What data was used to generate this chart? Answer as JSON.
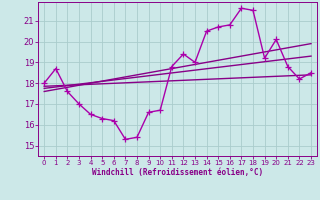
{
  "xlabel": "Windchill (Refroidissement éolien,°C)",
  "bg_color": "#cce8e8",
  "grid_color": "#aacccc",
  "line_color": "#880088",
  "line_color2": "#aa00aa",
  "x_ticks": [
    0,
    1,
    2,
    3,
    4,
    5,
    6,
    7,
    8,
    9,
    10,
    11,
    12,
    13,
    14,
    15,
    16,
    17,
    18,
    19,
    20,
    21,
    22,
    23
  ],
  "y_ticks": [
    15,
    16,
    17,
    18,
    19,
    20,
    21
  ],
  "xlim": [
    -0.5,
    23.5
  ],
  "ylim": [
    14.5,
    21.9
  ],
  "series1": [
    18.0,
    18.7,
    17.6,
    17.0,
    16.5,
    16.3,
    16.2,
    15.3,
    15.4,
    16.6,
    16.7,
    18.8,
    19.4,
    19.0,
    20.5,
    20.7,
    20.8,
    21.6,
    21.5,
    19.2,
    20.1,
    18.8,
    18.2,
    18.5
  ],
  "series2_x": [
    0,
    23
  ],
  "series2_y": [
    17.75,
    19.3
  ],
  "series3_x": [
    0,
    23
  ],
  "series3_y": [
    17.6,
    19.9
  ],
  "series4_x": [
    0,
    23
  ],
  "series4_y": [
    17.85,
    18.4
  ],
  "markersize": 4,
  "linewidth": 1.0
}
